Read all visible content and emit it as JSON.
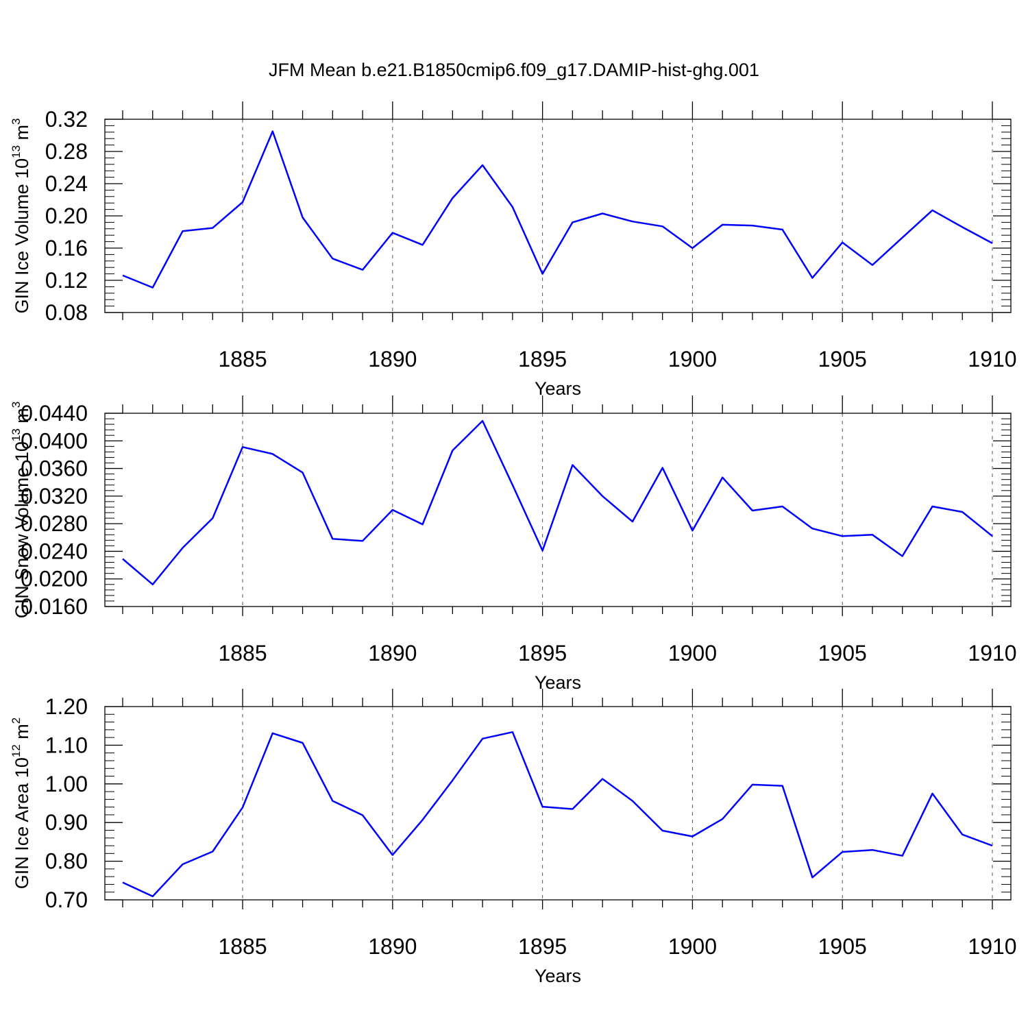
{
  "figure": {
    "title": "JFM Mean b.e21.B1850cmip6.f09_g17.DAMIP-hist-ghg.001"
  },
  "colors": {
    "line": "#0000ff",
    "axis": "#000000",
    "grid": "#555555"
  },
  "chart_data": [
    {
      "type": "line",
      "id": "ice-volume",
      "ylabel": "GIN Ice Volume 10",
      "ylabel_exponent": "13",
      "ylabel_unit": " m",
      "ylabel_unit_exponent": "3",
      "xlabel": "Years",
      "xlim": [
        1881,
        1910
      ],
      "ylim": [
        0.08,
        0.32
      ],
      "yticks": [
        "0.08",
        "0.12",
        "0.16",
        "0.20",
        "0.24",
        "0.28",
        "0.32"
      ],
      "xticks": [
        1885,
        1890,
        1895,
        1900,
        1905,
        1910
      ],
      "grid_x": true,
      "x": [
        1881,
        1882,
        1883,
        1884,
        1885,
        1886,
        1887,
        1888,
        1889,
        1890,
        1891,
        1892,
        1893,
        1894,
        1895,
        1896,
        1897,
        1898,
        1899,
        1900,
        1901,
        1902,
        1903,
        1904,
        1905,
        1906,
        1907,
        1908,
        1909,
        1910
      ],
      "values": [
        0.126,
        0.111,
        0.181,
        0.185,
        0.217,
        0.305,
        0.198,
        0.147,
        0.133,
        0.179,
        0.164,
        0.222,
        0.263,
        0.211,
        0.128,
        0.192,
        0.203,
        0.193,
        0.187,
        0.16,
        0.189,
        0.188,
        0.183,
        0.123,
        0.167,
        0.139,
        0.173,
        0.207,
        0.186,
        0.166
      ]
    },
    {
      "type": "line",
      "id": "snow-volume",
      "ylabel": "GIN Snow Volume 10",
      "ylabel_exponent": "13",
      "ylabel_unit": " m",
      "ylabel_unit_exponent": "3",
      "xlabel": "Years",
      "xlim": [
        1881,
        1910
      ],
      "ylim": [
        0.016,
        0.044
      ],
      "yticks": [
        "0.0160",
        "0.0200",
        "0.0240",
        "0.0280",
        "0.0320",
        "0.0360",
        "0.0400",
        "0.0440"
      ],
      "xticks": [
        1885,
        1890,
        1895,
        1900,
        1905,
        1910
      ],
      "grid_x": true,
      "x": [
        1881,
        1882,
        1883,
        1884,
        1885,
        1886,
        1887,
        1888,
        1889,
        1890,
        1891,
        1892,
        1893,
        1894,
        1895,
        1896,
        1897,
        1898,
        1899,
        1900,
        1901,
        1902,
        1903,
        1904,
        1905,
        1906,
        1907,
        1908,
        1909,
        1910
      ],
      "values": [
        0.0229,
        0.0192,
        0.0245,
        0.0288,
        0.0391,
        0.0381,
        0.0354,
        0.0258,
        0.0255,
        0.03,
        0.0279,
        0.0386,
        0.0429,
        0.0336,
        0.0241,
        0.0365,
        0.032,
        0.0283,
        0.0361,
        0.027,
        0.0347,
        0.0299,
        0.0305,
        0.0273,
        0.0262,
        0.0264,
        0.0233,
        0.0305,
        0.0297,
        0.0262
      ]
    },
    {
      "type": "line",
      "id": "ice-area",
      "ylabel": "GIN Ice Area 10",
      "ylabel_exponent": "12",
      "ylabel_unit": " m",
      "ylabel_unit_exponent": "2",
      "xlabel": "Years",
      "xlim": [
        1881,
        1910
      ],
      "ylim": [
        0.7,
        1.2
      ],
      "yticks": [
        "0.70",
        "0.80",
        "0.90",
        "1.00",
        "1.10",
        "1.20"
      ],
      "xticks": [
        1885,
        1890,
        1895,
        1900,
        1905,
        1910
      ],
      "grid_x": true,
      "x": [
        1881,
        1882,
        1883,
        1884,
        1885,
        1886,
        1887,
        1888,
        1889,
        1890,
        1891,
        1892,
        1893,
        1894,
        1895,
        1896,
        1897,
        1898,
        1899,
        1900,
        1901,
        1902,
        1903,
        1904,
        1905,
        1906,
        1907,
        1908,
        1909,
        1910
      ],
      "values": [
        0.745,
        0.709,
        0.792,
        0.825,
        0.939,
        1.131,
        1.106,
        0.956,
        0.919,
        0.816,
        0.907,
        1.009,
        1.117,
        1.134,
        0.941,
        0.935,
        1.013,
        0.956,
        0.879,
        0.864,
        0.909,
        0.998,
        0.995,
        0.758,
        0.824,
        0.829,
        0.814,
        0.975,
        0.869,
        0.84
      ]
    }
  ]
}
